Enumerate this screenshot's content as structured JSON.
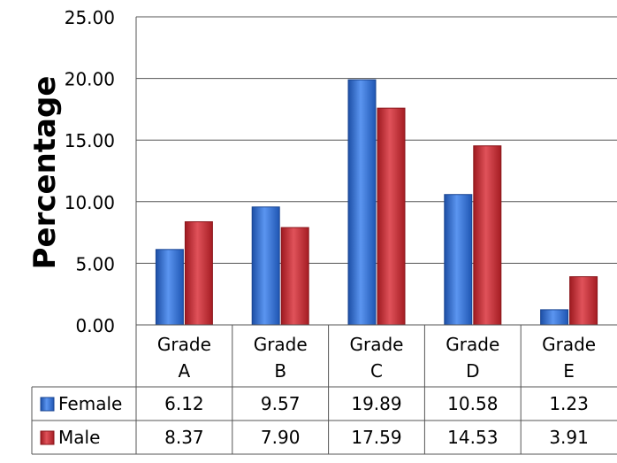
{
  "chart_data": {
    "type": "bar",
    "ylabel": "Percentage",
    "ylim": [
      0,
      25
    ],
    "yticks": [
      "0.00",
      "5.00",
      "10.00",
      "15.00",
      "20.00",
      "25.00"
    ],
    "ytick_values": [
      0,
      5,
      10,
      15,
      20,
      25
    ],
    "categories": [
      "Grade A",
      "Grade B",
      "Grade C",
      "Grade D",
      "Grade E"
    ],
    "category_lines": [
      [
        "Grade",
        "A"
      ],
      [
        "Grade",
        "B"
      ],
      [
        "Grade",
        "C"
      ],
      [
        "Grade",
        "D"
      ],
      [
        "Grade",
        "E"
      ]
    ],
    "grid": true,
    "legend": "data-table",
    "series": [
      {
        "name": "Female",
        "color": "#2f6fd2",
        "values": [
          6.12,
          9.57,
          19.89,
          10.58,
          1.23
        ],
        "labels": [
          "6.12",
          "9.57",
          "19.89",
          "10.58",
          "1.23"
        ]
      },
      {
        "name": "Male",
        "color": "#c8262c",
        "values": [
          8.37,
          7.9,
          17.59,
          14.53,
          3.91
        ],
        "labels": [
          "8.37",
          "7.90",
          "17.59",
          "14.53",
          "3.91"
        ]
      }
    ]
  }
}
